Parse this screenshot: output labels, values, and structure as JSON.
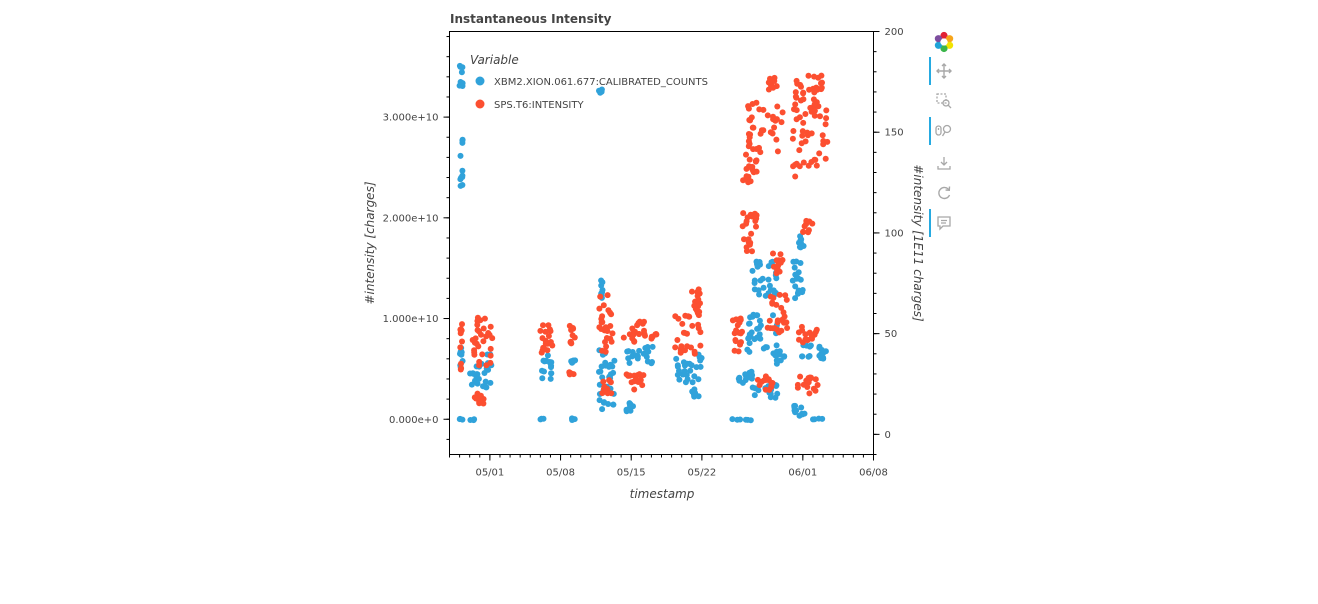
{
  "chart_data": {
    "type": "scatter",
    "title": "Instantaneous Intensity",
    "xlabel": "timestamp",
    "ylabel_left": "#intensity [charges]",
    "ylabel_right": "#intensity [1E11 charges]",
    "x_ticks": [
      "05/01",
      "05/08",
      "05/15",
      "05/22",
      "06/01",
      "06/08"
    ],
    "y_left_ticks": [
      "0.000e+0",
      "1.000e+10",
      "2.000e+10",
      "3.000e+10"
    ],
    "y_right_ticks": [
      "0",
      "50",
      "100",
      "150",
      "200"
    ],
    "xlim": [
      "2023-04-27",
      "2023-06-08"
    ],
    "y_left_lim": [
      -3500000000.0,
      38500000000.0
    ],
    "y_right_lim": [
      -10,
      200
    ],
    "legend": {
      "title": "Variable",
      "position": "top-left"
    },
    "series": [
      {
        "name": "XBM2.XION.061.677:CALIBRATED_COUNTS",
        "axis": "left",
        "color": "#30a2da",
        "clusters": [
          {
            "x": [
              1.0,
              1.3
            ],
            "y": [
              33000000000.0,
              35500000000.0
            ]
          },
          {
            "x": [
              1.0,
              1.3
            ],
            "y": [
              23000000000.0,
              28000000000.0
            ]
          },
          {
            "x": [
              1.0,
              1.3
            ],
            "y": [
              4800000000.0,
              8000000000.0
            ]
          },
          {
            "x": [
              1.0,
              1.3
            ],
            "y": [
              -100000000.0,
              100000000.0
            ]
          },
          {
            "x": [
              2.0,
              2.7
            ],
            "y": [
              -100000000.0,
              100000000.0
            ]
          },
          {
            "x": [
              2.0,
              4.3
            ],
            "y": [
              3000000000.0,
              6500000000.0
            ]
          },
          {
            "x": [
              9.0,
              9.4
            ],
            "y": [
              -100000000.0,
              100000000.0
            ]
          },
          {
            "x": [
              9.0,
              10.2
            ],
            "y": [
              4000000000.0,
              6500000000.0
            ]
          },
          {
            "x": [
              12.1,
              12.6
            ],
            "y": [
              -100000000.0,
              100000000.0
            ]
          },
          {
            "x": [
              12.0,
              12.5
            ],
            "y": [
              5500000000.0,
              6500000000.0
            ]
          },
          {
            "x": [
              14.8,
              15.1
            ],
            "y": [
              32000000000.0,
              32800000000.0
            ]
          },
          {
            "x": [
              14.8,
              15.2
            ],
            "y": [
              12000000000.0,
              14000000000.0
            ]
          },
          {
            "x": [
              14.8,
              16.4
            ],
            "y": [
              1000000000.0,
              3500000000.0
            ]
          },
          {
            "x": [
              14.8,
              16.4
            ],
            "y": [
              4000000000.0,
              7000000000.0
            ]
          },
          {
            "x": [
              17.5,
              18.3
            ],
            "y": [
              750000000.0,
              1800000000.0
            ]
          },
          {
            "x": [
              17.5,
              20.3
            ],
            "y": [
              5500000000.0,
              7200000000.0
            ]
          },
          {
            "x": [
              22.3,
              25.0
            ],
            "y": [
              3500000000.0,
              6500000000.0
            ]
          },
          {
            "x": [
              24.0,
              25.0
            ],
            "y": [
              2000000000.0,
              3000000000.0
            ]
          },
          {
            "x": [
              28.0,
              30.0
            ],
            "y": [
              -100000000.0,
              100000000.0
            ]
          },
          {
            "x": [
              28.0,
              30.0
            ],
            "y": [
              3500000000.0,
              5000000000.0
            ]
          },
          {
            "x": [
              29.5,
              32.5
            ],
            "y": [
              6500000000.0,
              10500000000.0
            ]
          },
          {
            "x": [
              30.0,
              32.5
            ],
            "y": [
              11500000000.0,
              16000000000.0
            ]
          },
          {
            "x": [
              30.0,
              32.5
            ],
            "y": [
              2000000000.0,
              3500000000.0
            ]
          },
          {
            "x": [
              32.0,
              33.2
            ],
            "y": [
              5500000000.0,
              6800000000.0
            ]
          },
          {
            "x": [
              34.0,
              35.0
            ],
            "y": [
              12000000000.0,
              16000000000.0
            ]
          },
          {
            "x": [
              34.5,
              35.1
            ],
            "y": [
              17000000000.0,
              18500000000.0
            ]
          },
          {
            "x": [
              34.0,
              35.2
            ],
            "y": [
              300000000.0,
              1500000000.0
            ]
          },
          {
            "x": [
              34.8,
              37.5
            ],
            "y": [
              6000000000.0,
              7500000000.0
            ]
          },
          {
            "x": [
              36.0,
              37.0
            ],
            "y": [
              -100000000.0,
              100000000.0
            ]
          }
        ]
      },
      {
        "name": "SPS.T6:INTENSITY",
        "axis": "right",
        "color": "#fc4f30",
        "clusters": [
          {
            "x": [
              1.0,
              1.3
            ],
            "y": [
              32,
              56
            ]
          },
          {
            "x": [
              2.0,
              4.3
            ],
            "y": [
              34,
              58
            ]
          },
          {
            "x": [
              2.5,
              3.5
            ],
            "y": [
              15,
              22
            ]
          },
          {
            "x": [
              9.0,
              10.2
            ],
            "y": [
              38,
              55
            ]
          },
          {
            "x": [
              11.8,
              12.5
            ],
            "y": [
              45,
              54
            ]
          },
          {
            "x": [
              11.8,
              12.3
            ],
            "y": [
              28,
              31
            ]
          },
          {
            "x": [
              14.8,
              16.2
            ],
            "y": [
              40,
              70
            ]
          },
          {
            "x": [
              15.0,
              16.1
            ],
            "y": [
              20,
              28
            ]
          },
          {
            "x": [
              17.2,
              19.4
            ],
            "y": [
              46,
              56
            ]
          },
          {
            "x": [
              17.5,
              19.4
            ],
            "y": [
              22,
              30
            ]
          },
          {
            "x": [
              20.0,
              20.5
            ],
            "y": [
              46,
              50
            ]
          },
          {
            "x": [
              22.3,
              25.0
            ],
            "y": [
              40,
              62
            ]
          },
          {
            "x": [
              24.0,
              25.0
            ],
            "y": [
              62,
              72
            ]
          },
          {
            "x": [
              28.0,
              29.0
            ],
            "y": [
              40,
              60
            ]
          },
          {
            "x": [
              29.0,
              30.5
            ],
            "y": [
              90,
              110
            ]
          },
          {
            "x": [
              29.0,
              30.5
            ],
            "y": [
              125,
              140
            ]
          },
          {
            "x": [
              29.5,
              33.0
            ],
            "y": [
              140,
              165
            ]
          },
          {
            "x": [
              31.5,
              32.5
            ],
            "y": [
              170,
              178
            ]
          },
          {
            "x": [
              31.5,
              33.5
            ],
            "y": [
              50,
              70
            ]
          },
          {
            "x": [
              30.5,
              32.0
            ],
            "y": [
              22,
              30
            ]
          },
          {
            "x": [
              32.0,
              33.0
            ],
            "y": [
              80,
              90
            ]
          },
          {
            "x": [
              34.0,
              37.5
            ],
            "y": [
              128,
              165
            ]
          },
          {
            "x": [
              34.0,
              37.0
            ],
            "y": [
              165,
              180
            ]
          },
          {
            "x": [
              35.0,
              36.0
            ],
            "y": [
              100,
              106
            ]
          },
          {
            "x": [
              34.5,
              36.5
            ],
            "y": [
              45,
              55
            ]
          },
          {
            "x": [
              34.5,
              36.5
            ],
            "y": [
              20,
              30
            ]
          }
        ]
      }
    ]
  },
  "toolbar": {
    "tools": [
      {
        "icon": "bokeh-logo-icon",
        "active": false
      },
      {
        "icon": "pan-icon",
        "active": true
      },
      {
        "icon": "box-zoom-icon",
        "active": false
      },
      {
        "icon": "wheel-zoom-icon",
        "active": true
      },
      {
        "icon": "save-icon",
        "active": false
      },
      {
        "icon": "reset-icon",
        "active": false
      },
      {
        "icon": "hover-icon",
        "active": true
      }
    ]
  }
}
